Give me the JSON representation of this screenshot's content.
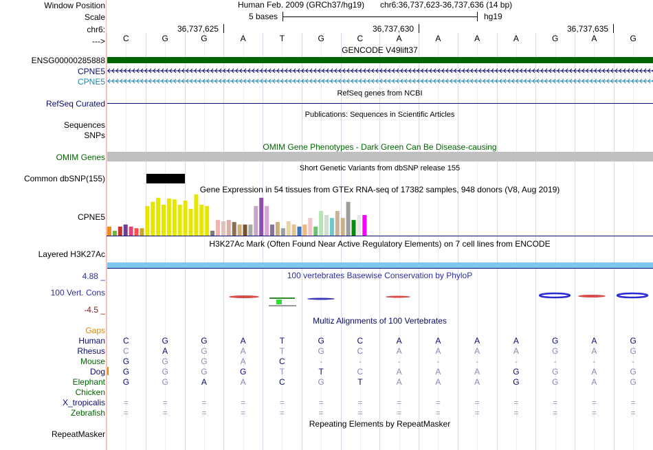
{
  "header": {
    "window_position_label": "Window Position",
    "assembly_text": "Human Feb. 2009 (GRCh37/hg19)",
    "position_text": "chr6:36,737,623-36,737,636 (14 bp)",
    "scale_label": "Scale",
    "scale_text": "5 bases",
    "scale_db": "hg19",
    "chrom_label": "chr6:",
    "strand_label": "--->",
    "coordinate_ticks": [
      "36,737,625",
      "36,737,630",
      "36,737,635"
    ]
  },
  "bases": [
    "C",
    "G",
    "G",
    "A",
    "T",
    "G",
    "C",
    "A",
    "A",
    "A",
    "A",
    "G",
    "A",
    "G"
  ],
  "tracks": {
    "gencode_title": "GENCODE V49lift37",
    "gencode_items": [
      {
        "name": "ENSG00000285888",
        "color": "#006400"
      },
      {
        "name": "CPNE5",
        "color": "#0b0b6e"
      },
      {
        "name": "CPNE5",
        "color": "#1e88b5"
      }
    ],
    "refseq_title": "RefSeq genes from NCBI",
    "refseq_label": "RefSeq Curated",
    "pubs_title": "Publications: Sequences in Scientific Articles",
    "pubs_labels": [
      "Sequences",
      "SNPs"
    ],
    "omim_title": "OMIM Gene Phenotypes - Dark Green Can Be Disease-causing",
    "omim_label": "OMIM Genes",
    "dbsnp_title": "Short Genetic Variants from dbSNP release 155",
    "dbsnp_label": "Common dbSNP(155)",
    "gtex_title": "Gene Expression in 54 tissues from GTEx RNA-seq of 17382 samples, 948 donors (V8, Aug 2019)",
    "gtex_label": "CPNE5",
    "h3k27_title": "H3K27Ac Mark (Often Found Near Active Regulatory Elements) on 7 cell lines from ENCODE",
    "h3k27_label": "Layered H3K27Ac",
    "phylop_title": "100 vertebrates Basewise Conservation by PhyloP",
    "phylop_label": "100 Vert. Cons",
    "phylop_max": "4.88 _",
    "phylop_min": "-4.5 _",
    "multiz_title": "Multiz Alignments of 100 Vertebrates",
    "gaps_label": "Gaps",
    "repeat_title": "Repeating Elements by RepeatMasker",
    "repeat_label": "RepeatMasker"
  },
  "gtex_values": [
    {
      "value": 0.22,
      "color": "#f08a24"
    },
    {
      "value": 0.12,
      "color": "#76b043"
    },
    {
      "value": 0.22,
      "color": "#c2362e"
    },
    {
      "value": 0.27,
      "color": "#6d3f8f"
    },
    {
      "value": 0.22,
      "color": "#e0457a"
    },
    {
      "value": 0.18,
      "color": "#ff4d4d"
    },
    {
      "value": 0.18,
      "color": "#c8a62a"
    },
    {
      "value": 0.72,
      "color": "#e6e600"
    },
    {
      "value": 0.82,
      "color": "#e6e600"
    },
    {
      "value": 0.92,
      "color": "#e6e600"
    },
    {
      "value": 0.75,
      "color": "#e6e600"
    },
    {
      "value": 0.9,
      "color": "#e6e600"
    },
    {
      "value": 0.88,
      "color": "#e6e600"
    },
    {
      "value": 0.75,
      "color": "#e6e600"
    },
    {
      "value": 0.85,
      "color": "#e6e600"
    },
    {
      "value": 0.65,
      "color": "#e6e600"
    },
    {
      "value": 1.0,
      "color": "#e6e600"
    },
    {
      "value": 0.75,
      "color": "#e6e600"
    },
    {
      "value": 0.72,
      "color": "#e6e600"
    },
    {
      "value": 0.12,
      "color": "#7a7a7a"
    },
    {
      "value": 0.38,
      "color": "#f2b3b3"
    },
    {
      "value": 0.35,
      "color": "#ddc3b8"
    },
    {
      "value": 0.38,
      "color": "#d9b0a8"
    },
    {
      "value": 0.33,
      "color": "#8a6f55"
    },
    {
      "value": 0.27,
      "color": "#cfae7a"
    },
    {
      "value": 0.27,
      "color": "#7a5230"
    },
    {
      "value": 0.27,
      "color": "#a9a9a9"
    },
    {
      "value": 0.72,
      "color": "#c9a4c9"
    },
    {
      "value": 0.92,
      "color": "#8f4fb0"
    },
    {
      "value": 0.72,
      "color": "#d8a6d8"
    },
    {
      "value": 0.27,
      "color": "#8a6f9f"
    },
    {
      "value": 0.33,
      "color": "#cbb07a"
    },
    {
      "value": 0.18,
      "color": "#9c9c9c"
    },
    {
      "value": 0.35,
      "color": "#e8d2a8"
    },
    {
      "value": 0.27,
      "color": "#e4c290"
    },
    {
      "value": 0.22,
      "color": "#3a78c0"
    },
    {
      "value": 0.27,
      "color": "#f0b880"
    },
    {
      "value": 0.43,
      "color": "#f2c6c6"
    },
    {
      "value": 0.22,
      "color": "#6fbf73"
    },
    {
      "value": 0.6,
      "color": "#b3e6b3"
    },
    {
      "value": 0.5,
      "color": "#cfe0cf"
    },
    {
      "value": 0.43,
      "color": "#6ec9c9"
    },
    {
      "value": 0.6,
      "color": "#c9b39a"
    },
    {
      "value": 0.43,
      "color": "#c7b08a"
    },
    {
      "value": 0.82,
      "color": "#9c9c9c"
    },
    {
      "value": 0.38,
      "color": "#0a8a0a"
    },
    {
      "value": 0.5,
      "color": "#e8e8e8"
    },
    {
      "value": 0.5,
      "color": "#ff00ff"
    }
  ],
  "species": [
    {
      "name": "Human",
      "color": "#0b0b6e",
      "bases": [
        "C",
        "G",
        "G",
        "A",
        "T",
        "G",
        "C",
        "A",
        "A",
        "A",
        "A",
        "G",
        "A",
        "G"
      ]
    },
    {
      "name": "Rhesus",
      "color": "#0b0b6e",
      "bases": [
        "C",
        "A",
        "G",
        "A",
        "T",
        "G",
        "C",
        "A",
        "A",
        "A",
        "A",
        "G",
        "A",
        "G"
      ]
    },
    {
      "name": "Mouse",
      "color": "#006400",
      "bases": [
        "G",
        "G",
        "G",
        "A",
        "C",
        "-",
        "-",
        "-",
        "-",
        "-",
        "-",
        "-",
        "-",
        "-"
      ]
    },
    {
      "name": "Dog",
      "color": "#0b0b6e",
      "bases": [
        "G",
        "G",
        "G",
        "G",
        "T",
        "T",
        "C",
        "A",
        "A",
        "A",
        "G",
        "G",
        "A",
        "G"
      ]
    },
    {
      "name": "Elephant",
      "color": "#006400",
      "bases": [
        "G",
        "G",
        "A",
        "A",
        "C",
        "G",
        "T",
        "A",
        "A",
        "A",
        "G",
        "G",
        "A",
        "G"
      ]
    },
    {
      "name": "Chicken",
      "color": "#006400",
      "bases": [
        "",
        "",
        "",
        "",
        "",
        "",
        "",
        "",
        "",
        "",
        "",
        "",
        "",
        ""
      ]
    },
    {
      "name": "X_tropicalis",
      "color": "#0b0b6e",
      "bases": [
        "=",
        "=",
        "=",
        "=",
        "=",
        "=",
        "=",
        "=",
        "=",
        "=",
        "=",
        "=",
        "=",
        "="
      ]
    },
    {
      "name": "Zebrafish",
      "color": "#006400",
      "bases": [
        "=",
        "=",
        "=",
        "=",
        "=",
        "=",
        "=",
        "=",
        "=",
        "=",
        "=",
        "=",
        "=",
        "="
      ]
    }
  ],
  "colors": {
    "gencode_dark": "#006400",
    "gene_blue": "#0b0b6e",
    "gene_teal": "#1e88b5",
    "omim": "#c0c0c0",
    "h3k27": "#7ec8f0",
    "phylop_title": "#2c2c9e",
    "phylop_min": "#8b1a1a",
    "gaps": "#e08a00",
    "multiz_title": "#0b0b6e",
    "gridline": "#d9d9e8"
  }
}
